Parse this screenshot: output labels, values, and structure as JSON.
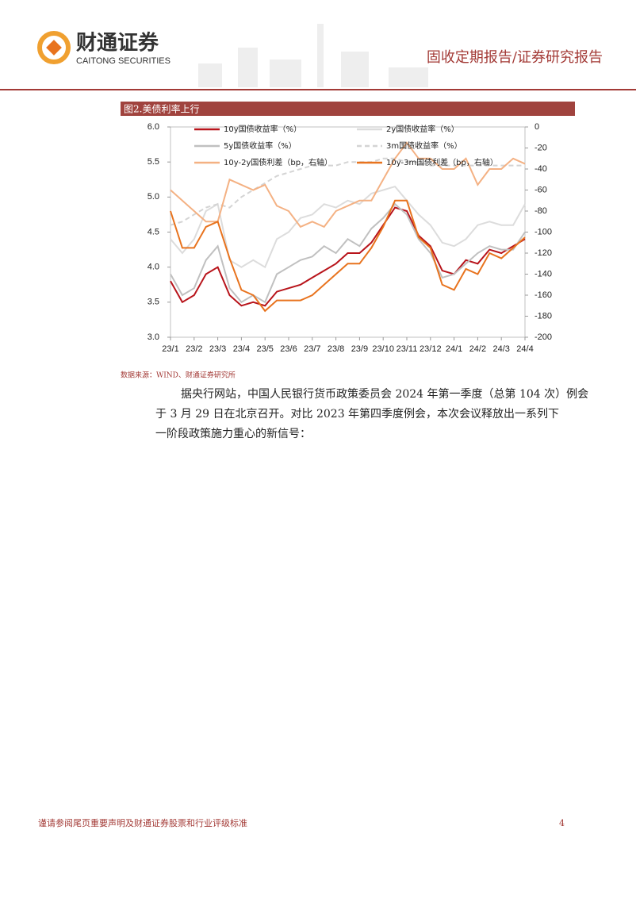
{
  "header": {
    "company": "财通证券",
    "company_en": "CAITONG SECURITIES",
    "report_type": "固收定期报告/证券研究报告"
  },
  "chart_data": {
    "type": "line",
    "title": "图2.美债利率上行",
    "categories": [
      "23/1",
      null,
      "23/2",
      null,
      "23/3",
      null,
      "23/4",
      null,
      "23/5",
      null,
      "23/6",
      null,
      "23/7",
      null,
      "23/8",
      null,
      "23/9",
      null,
      "23/10",
      null,
      "23/11",
      null,
      "23/12",
      null,
      "24/1",
      null,
      "24/2",
      null,
      "24/3",
      null,
      "24/4"
    ],
    "ylim": [
      3,
      6
    ],
    "yticks": [
      {
        "value": 3,
        "label": "3.0"
      },
      3.5,
      {
        "value": 4,
        "label": "4.0"
      },
      4.5,
      {
        "value": 5,
        "label": "5.0"
      },
      5.5,
      {
        "value": 6,
        "label": "6.0"
      }
    ],
    "y2lim": [
      -200,
      0
    ],
    "y2ticks": [
      -200,
      -180,
      -160,
      -140,
      -120,
      -100,
      -80,
      -60,
      -40,
      -20,
      0
    ],
    "series": [
      {
        "name": "10y国债收益率（%）",
        "color": "#b8141b",
        "values": [
          3.8,
          3.5,
          3.6,
          3.9,
          4.0,
          3.6,
          3.45,
          3.5,
          3.45,
          3.65,
          3.7,
          3.75,
          3.85,
          3.95,
          4.05,
          4.2,
          4.2,
          4.35,
          4.6,
          4.85,
          4.8,
          4.45,
          4.3,
          3.95,
          3.9,
          4.1,
          4.05,
          4.25,
          4.2,
          4.3,
          4.4
        ]
      },
      {
        "name": "2y国债收益率（%）",
        "color": "#dcdcdc",
        "values": [
          4.4,
          4.2,
          4.4,
          4.8,
          4.9,
          4.1,
          4.0,
          4.1,
          4.0,
          4.4,
          4.5,
          4.7,
          4.75,
          4.9,
          4.85,
          4.95,
          4.9,
          5.05,
          5.1,
          5.15,
          4.95,
          4.75,
          4.6,
          4.35,
          4.3,
          4.4,
          4.6,
          4.65,
          4.6,
          4.6,
          4.9
        ]
      },
      {
        "name": "5y国债收益率（%）",
        "color": "#c0c0c0",
        "values": [
          3.9,
          3.6,
          3.7,
          4.1,
          4.3,
          3.7,
          3.5,
          3.6,
          3.5,
          3.9,
          4.0,
          4.1,
          4.15,
          4.3,
          4.2,
          4.4,
          4.3,
          4.55,
          4.7,
          4.9,
          4.75,
          4.4,
          4.2,
          3.85,
          3.9,
          4.05,
          4.2,
          4.3,
          4.25,
          4.25,
          4.5
        ]
      },
      {
        "name": "3m国债收益率（%）",
        "color": "#d4d4d4",
        "dash": true,
        "values": [
          4.6,
          4.65,
          4.75,
          4.85,
          4.9,
          4.85,
          5.0,
          5.1,
          5.2,
          5.3,
          5.35,
          5.4,
          5.45,
          5.45,
          5.45,
          5.5,
          5.5,
          5.5,
          5.55,
          5.55,
          5.5,
          5.5,
          5.45,
          5.45,
          5.45,
          5.45,
          5.45,
          5.45,
          5.45,
          5.45,
          5.45
        ]
      },
      {
        "name": "10y-2y国债利差（bp，右轴）",
        "color": "#f4b183",
        "axis": "y2",
        "values": [
          -60,
          -70,
          -80,
          -90,
          -90,
          -50,
          -55,
          -60,
          -55,
          -75,
          -80,
          -95,
          -90,
          -95,
          -80,
          -75,
          -70,
          -70,
          -50,
          -30,
          -15,
          -30,
          -30,
          -40,
          -40,
          -30,
          -55,
          -40,
          -40,
          -30,
          -35
        ]
      },
      {
        "name": "10y-3m国债利差（bp，右轴）",
        "color": "#e8731e",
        "axis": "y2",
        "values": [
          -80,
          -115,
          -115,
          -95,
          -90,
          -125,
          -155,
          -160,
          -175,
          -165,
          -165,
          -165,
          -160,
          -150,
          -140,
          -130,
          -130,
          -115,
          -95,
          -70,
          -70,
          -105,
          -115,
          -150,
          -155,
          -135,
          -140,
          -120,
          -125,
          -115,
          -105
        ]
      }
    ]
  },
  "source": "数据来源：WIND、财通证券研究所",
  "paragraph": {
    "lines": [
      "据央行网站，中国人民银行货币政策委员会 2024 年第一季度（总第 104 次）例会",
      "于 3 月 29 日在北京召开。对比 2023 年第四季度例会，本次会议释放出一系列下",
      "一阶段政策施力重心的新信号："
    ]
  },
  "footer": {
    "disclaimer": "谨请参阅尾页重要声明及财通证券股票和行业评级标准",
    "page": "4"
  }
}
